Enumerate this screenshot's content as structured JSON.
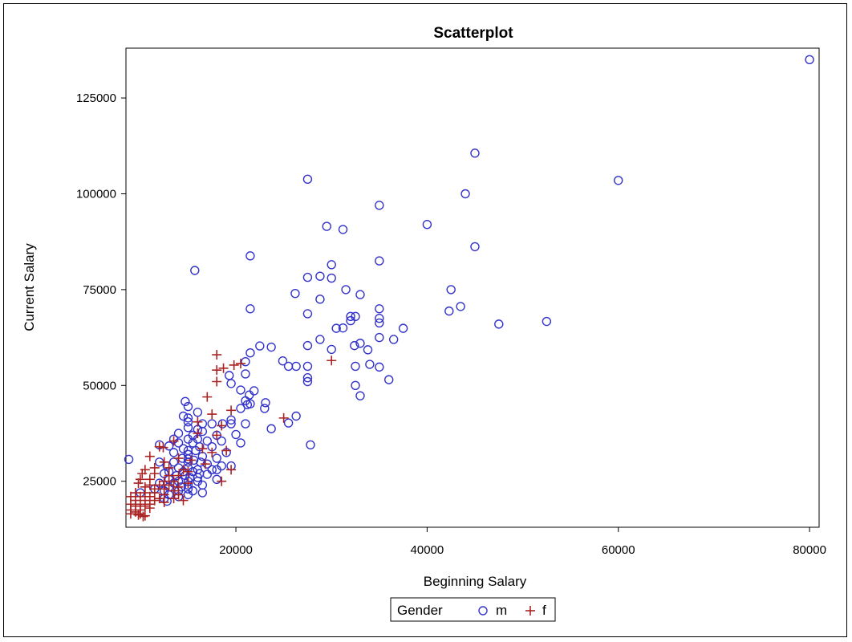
{
  "chart_data": {
    "type": "scatter",
    "title": "Scatterplot",
    "xlabel": "Beginning Salary",
    "ylabel": "Current Salary",
    "xlim": [
      8500,
      81000
    ],
    "ylim": [
      13000,
      138000
    ],
    "x_ticks": [
      20000,
      40000,
      60000,
      80000
    ],
    "y_ticks": [
      25000,
      50000,
      75000,
      100000,
      125000
    ],
    "x_tick_labels": [
      "20000",
      "40000",
      "60000",
      "80000"
    ],
    "y_tick_labels": [
      "25000",
      "50000",
      "75000",
      "100000",
      "125000"
    ],
    "grid": false,
    "legend": {
      "title": "Gender",
      "position": "bottom-center",
      "entries": [
        "m",
        "f"
      ]
    },
    "colors": {
      "m": "#3333cc",
      "f": "#aa2222"
    },
    "markers": {
      "m": "circle-open",
      "f": "plus"
    },
    "series": [
      {
        "name": "m",
        "points": [
          [
            80000,
            135000
          ],
          [
            45000,
            110600
          ],
          [
            60000,
            103500
          ],
          [
            27500,
            103800
          ],
          [
            44000,
            100000
          ],
          [
            35000,
            97000
          ],
          [
            40000,
            92000
          ],
          [
            29500,
            91500
          ],
          [
            31200,
            90700
          ],
          [
            45000,
            86200
          ],
          [
            21500,
            83800
          ],
          [
            35000,
            82500
          ],
          [
            15700,
            80000
          ],
          [
            30000,
            81500
          ],
          [
            27500,
            78200
          ],
          [
            28800,
            78500
          ],
          [
            30000,
            78000
          ],
          [
            31500,
            75000
          ],
          [
            42500,
            75000
          ],
          [
            26200,
            74000
          ],
          [
            33000,
            73700
          ],
          [
            28800,
            72500
          ],
          [
            43500,
            70600
          ],
          [
            21500,
            70000
          ],
          [
            35000,
            70000
          ],
          [
            42300,
            69400
          ],
          [
            27500,
            68700
          ],
          [
            32000,
            68000
          ],
          [
            32500,
            68000
          ],
          [
            35000,
            67500
          ],
          [
            32000,
            66900
          ],
          [
            35000,
            66300
          ],
          [
            52500,
            66700
          ],
          [
            47500,
            66000
          ],
          [
            31200,
            65000
          ],
          [
            30500,
            64900
          ],
          [
            37500,
            64900
          ],
          [
            35000,
            62500
          ],
          [
            28800,
            62000
          ],
          [
            36500,
            62000
          ],
          [
            33000,
            61000
          ],
          [
            32400,
            60400
          ],
          [
            22500,
            60300
          ],
          [
            23700,
            60000
          ],
          [
            27500,
            60400
          ],
          [
            30000,
            59400
          ],
          [
            33800,
            59300
          ],
          [
            21500,
            58500
          ],
          [
            21000,
            56200
          ],
          [
            24900,
            56400
          ],
          [
            25500,
            55000
          ],
          [
            26300,
            55000
          ],
          [
            27500,
            55000
          ],
          [
            32500,
            55000
          ],
          [
            34000,
            55500
          ],
          [
            35000,
            54800
          ],
          [
            21000,
            53000
          ],
          [
            19300,
            52600
          ],
          [
            27500,
            52000
          ],
          [
            27500,
            51000
          ],
          [
            36000,
            51500
          ],
          [
            19500,
            50500
          ],
          [
            32500,
            50000
          ],
          [
            20500,
            48800
          ],
          [
            21900,
            48600
          ],
          [
            21400,
            47500
          ],
          [
            33000,
            47300
          ],
          [
            21000,
            46000
          ],
          [
            14700,
            45800
          ],
          [
            23100,
            45500
          ],
          [
            21500,
            45200
          ],
          [
            21200,
            45000
          ],
          [
            15000,
            44500
          ],
          [
            20500,
            44000
          ],
          [
            23000,
            44000
          ],
          [
            16000,
            43000
          ],
          [
            26300,
            42000
          ],
          [
            14500,
            42000
          ],
          [
            15000,
            41500
          ],
          [
            19500,
            41000
          ],
          [
            15000,
            40500
          ],
          [
            16500,
            40000
          ],
          [
            17500,
            40000
          ],
          [
            18600,
            40000
          ],
          [
            19500,
            40000
          ],
          [
            21000,
            40000
          ],
          [
            25500,
            40200
          ],
          [
            15000,
            39000
          ],
          [
            16000,
            38500
          ],
          [
            16500,
            38000
          ],
          [
            23700,
            38700
          ],
          [
            14000,
            37500
          ],
          [
            15500,
            37000
          ],
          [
            18000,
            37000
          ],
          [
            20000,
            37200
          ],
          [
            13500,
            36000
          ],
          [
            15000,
            36000
          ],
          [
            16000,
            36000
          ],
          [
            17000,
            35500
          ],
          [
            18500,
            35500
          ],
          [
            20500,
            35000
          ],
          [
            14000,
            35000
          ],
          [
            15500,
            35000
          ],
          [
            12000,
            34500
          ],
          [
            13000,
            34200
          ],
          [
            16200,
            34000
          ],
          [
            17500,
            34000
          ],
          [
            14500,
            33500
          ],
          [
            15000,
            33000
          ],
          [
            15800,
            33000
          ],
          [
            19000,
            32500
          ],
          [
            13500,
            32500
          ],
          [
            15000,
            32000
          ],
          [
            16500,
            31500
          ],
          [
            18000,
            31000
          ],
          [
            14400,
            31000
          ],
          [
            15000,
            30800
          ],
          [
            15600,
            30500
          ],
          [
            8800,
            30700
          ],
          [
            12000,
            30000
          ],
          [
            13500,
            30000
          ],
          [
            15000,
            30000
          ],
          [
            16300,
            30000
          ],
          [
            17000,
            29500
          ],
          [
            18500,
            29000
          ],
          [
            19500,
            29000
          ],
          [
            27800,
            34500
          ],
          [
            12800,
            29000
          ],
          [
            14000,
            28500
          ],
          [
            15000,
            28500
          ],
          [
            16000,
            28000
          ],
          [
            17500,
            28000
          ],
          [
            18000,
            28000
          ],
          [
            13000,
            27500
          ],
          [
            14500,
            27500
          ],
          [
            15500,
            27500
          ],
          [
            16200,
            27000
          ],
          [
            17000,
            26800
          ],
          [
            12500,
            27000
          ],
          [
            13800,
            26500
          ],
          [
            14700,
            26500
          ],
          [
            15200,
            26000
          ],
          [
            16000,
            26000
          ],
          [
            18000,
            25500
          ],
          [
            13000,
            25500
          ],
          [
            14000,
            25000
          ],
          [
            15000,
            25000
          ],
          [
            16000,
            25000
          ],
          [
            12000,
            24500
          ],
          [
            13500,
            24500
          ],
          [
            15000,
            24000
          ],
          [
            16500,
            24000
          ],
          [
            13000,
            23500
          ],
          [
            14300,
            23500
          ],
          [
            15000,
            23000
          ],
          [
            11500,
            23000
          ],
          [
            12500,
            22500
          ],
          [
            14000,
            22500
          ],
          [
            15500,
            22500
          ],
          [
            16500,
            22000
          ],
          [
            10000,
            22000
          ],
          [
            13000,
            21500
          ],
          [
            15000,
            21500
          ],
          [
            12500,
            20500
          ],
          [
            14000,
            21000
          ],
          [
            12800,
            19800
          ]
        ]
      },
      {
        "name": "f",
        "points": [
          [
            18000,
            58000
          ],
          [
            19800,
            55300
          ],
          [
            20500,
            55700
          ],
          [
            18000,
            54000
          ],
          [
            18700,
            54500
          ],
          [
            25000,
            41500
          ],
          [
            30000,
            56500
          ],
          [
            18000,
            51000
          ],
          [
            17000,
            47000
          ],
          [
            19500,
            43500
          ],
          [
            17500,
            42500
          ],
          [
            16000,
            40500
          ],
          [
            18500,
            39500
          ],
          [
            16000,
            37500
          ],
          [
            18000,
            37000
          ],
          [
            13500,
            35500
          ],
          [
            12000,
            34000
          ],
          [
            12400,
            33800
          ],
          [
            16500,
            33500
          ],
          [
            19000,
            33000
          ],
          [
            17500,
            32500
          ],
          [
            11000,
            31500
          ],
          [
            14000,
            31000
          ],
          [
            15300,
            30500
          ],
          [
            12500,
            30000
          ],
          [
            16800,
            29500
          ],
          [
            19500,
            28000
          ],
          [
            10500,
            28000
          ],
          [
            11500,
            28500
          ],
          [
            13000,
            28500
          ],
          [
            14500,
            28000
          ],
          [
            15000,
            27500
          ],
          [
            10200,
            27000
          ],
          [
            11500,
            27000
          ],
          [
            13000,
            26500
          ],
          [
            14000,
            26500
          ],
          [
            18500,
            25000
          ],
          [
            10000,
            25500
          ],
          [
            11000,
            25500
          ],
          [
            12500,
            25000
          ],
          [
            13500,
            25000
          ],
          [
            15000,
            24500
          ],
          [
            9800,
            24500
          ],
          [
            11000,
            24000
          ],
          [
            12000,
            24000
          ],
          [
            13000,
            24000
          ],
          [
            14000,
            23500
          ],
          [
            10500,
            23500
          ],
          [
            11500,
            23000
          ],
          [
            12500,
            23000
          ],
          [
            13500,
            22500
          ],
          [
            9500,
            22000
          ],
          [
            10500,
            22000
          ],
          [
            11500,
            22000
          ],
          [
            12500,
            21500
          ],
          [
            14000,
            21500
          ],
          [
            9000,
            21000
          ],
          [
            10000,
            21000
          ],
          [
            11000,
            21000
          ],
          [
            12000,
            20500
          ],
          [
            13500,
            20500
          ],
          [
            9500,
            20000
          ],
          [
            10500,
            20000
          ],
          [
            11500,
            20000
          ],
          [
            12500,
            19500
          ],
          [
            14500,
            20000
          ],
          [
            9000,
            19000
          ],
          [
            10000,
            19000
          ],
          [
            11000,
            19000
          ],
          [
            9500,
            18500
          ],
          [
            10500,
            18500
          ],
          [
            9000,
            17500
          ],
          [
            10000,
            17500
          ],
          [
            11000,
            18000
          ],
          [
            9500,
            17000
          ],
          [
            10000,
            16500
          ],
          [
            10500,
            16000
          ],
          [
            9000,
            16500
          ],
          [
            9800,
            16200
          ],
          [
            10300,
            15800
          ]
        ]
      }
    ]
  }
}
